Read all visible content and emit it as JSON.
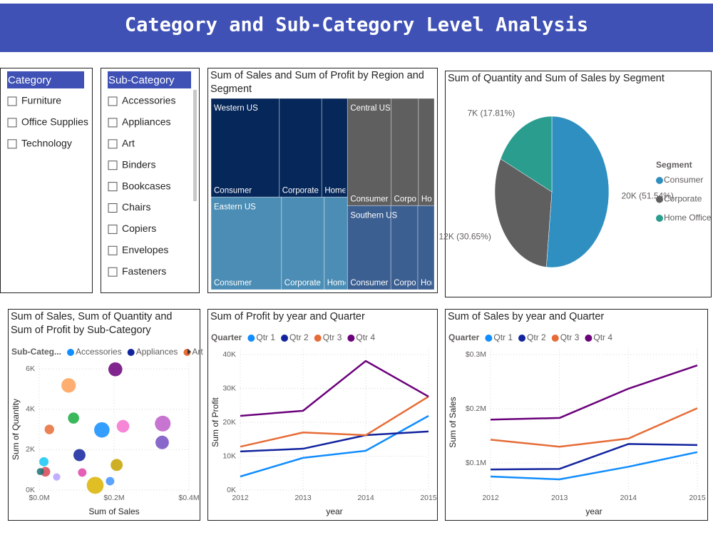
{
  "header": {
    "title": "Category and Sub-Category Level Analysis"
  },
  "slicers": [
    {
      "title": "Category",
      "items": [
        "Furniture",
        "Office Supplies",
        "Technology"
      ]
    },
    {
      "title": "Sub-Category",
      "items": [
        "Accessories",
        "Appliances",
        "Art",
        "Binders",
        "Bookcases",
        "Chairs",
        "Copiers",
        "Envelopes",
        "Fasteners"
      ]
    }
  ],
  "chart_data": [
    {
      "type": "treemap",
      "title": "Sum of Sales and Sum of Profit by Region and Segment",
      "segments": [
        "Consumer",
        "Corporate",
        "Home Office"
      ],
      "series": [
        {
          "name": "Western US",
          "color": "#06275a",
          "values": [
            362900,
            225900,
            136700
          ]
        },
        {
          "name": "Eastern US",
          "color": "#4b8db5",
          "values": [
            350900,
            213000,
            116000
          ]
        },
        {
          "name": "Central US",
          "color": "#5f5f5f",
          "values": [
            252000,
            158000,
            91000
          ]
        },
        {
          "name": "Southern US",
          "color": "#3c5f91",
          "values": [
            196000,
            122000,
            74000
          ]
        }
      ]
    },
    {
      "type": "pie",
      "title": "Sum of Quantity and Sum of Sales by Segment",
      "legend_title": "Segment",
      "categories": [
        "Consumer",
        "Corporate",
        "Home Office"
      ],
      "colors": [
        "#2f8fc1",
        "#5f5f5f",
        "#2a9d8f"
      ],
      "values": [
        19521,
        11608,
        6744
      ],
      "value_labels": [
        "20K (51.54%)",
        "12K (30.65%)",
        "7K (17.81%)"
      ]
    },
    {
      "type": "scatter",
      "title": "Sum of Sales, Sum of Quantity and Sum of Profit by Sub-Category",
      "x_label": "Sum of Sales",
      "y_label": "Sum of Quantity",
      "legend_title": "Sub-Categ...",
      "legend": [
        "Accessories",
        "Appliances",
        "Art"
      ],
      "x": [
        167380,
        107532,
        27119,
        203413,
        114880,
        328449,
        149528,
        16476,
        3024,
        91705,
        12486,
        189239,
        78479,
        330007,
        223844,
        46674,
        206966
      ],
      "y": [
        2976,
        1729,
        3000,
        5974,
        868,
        2356,
        234,
        906,
        914,
        3563,
        1400,
        440,
        5178,
        3289,
        3158,
        647,
        1241
      ],
      "sizes": [
        41937,
        18138,
        6528,
        30222,
        -3473,
        26590,
        55618,
        6964,
        950,
        13059,
        5546,
        3385,
        34054,
        44516,
        21279,
        -1189,
        -17725
      ],
      "colors": [
        "#118dff",
        "#12239e",
        "#e66c37",
        "#6b007b",
        "#e044a7",
        "#744ec2",
        "#d9b300",
        "#d64550",
        "#197278",
        "#1aab40",
        "#15c6f4",
        "#4092ff",
        "#ffa058",
        "#be5dc9",
        "#f472d0",
        "#b5a1ff",
        "#c4a200"
      ],
      "xlim": [
        0,
        400000
      ],
      "xticks": [
        {
          "value": 0,
          "label": "$0.0M"
        },
        {
          "value": 200000,
          "label": "$0.2M"
        },
        {
          "value": 400000,
          "label": "$0.4M"
        }
      ],
      "ylim": [
        0,
        6000
      ],
      "yticks": [
        {
          "value": 0,
          "label": "0K"
        },
        {
          "value": 2000,
          "label": "2K"
        },
        {
          "value": 4000,
          "label": "4K"
        },
        {
          "value": 6000,
          "label": "6K"
        }
      ],
      "grid": true
    },
    {
      "type": "line",
      "title": "Sum of Profit by year and Quarter",
      "x_label": "year",
      "y_label": "Sum of Profit",
      "legend_title": "Quarter",
      "x": [
        2012,
        2013,
        2014,
        2015
      ],
      "xlim": [
        2012,
        2015
      ],
      "xticks": [
        2012,
        2013,
        2014,
        2015
      ],
      "ylim": [
        0,
        40000
      ],
      "yticks": [
        {
          "value": 0,
          "label": "0K"
        },
        {
          "value": 10000,
          "label": "10K"
        },
        {
          "value": 20000,
          "label": "20K"
        },
        {
          "value": 30000,
          "label": "30K"
        },
        {
          "value": 40000,
          "label": "40K"
        }
      ],
      "grid": true,
      "series": [
        {
          "name": "Qtr 1",
          "color": "#118dff",
          "values": [
            4000,
            9500,
            11600,
            21900
          ]
        },
        {
          "name": "Qtr 2",
          "color": "#12239e",
          "values": [
            11400,
            12200,
            16200,
            17300
          ]
        },
        {
          "name": "Qtr 3",
          "color": "#e66c37",
          "values": [
            12800,
            17000,
            16200,
            27600
          ]
        },
        {
          "name": "Qtr 4",
          "color": "#6b007b",
          "values": [
            21900,
            23400,
            38100,
            27600
          ]
        }
      ]
    },
    {
      "type": "line",
      "title": "Sum of Sales by year and Quarter",
      "x_label": "year",
      "y_label": "Sum of Sales",
      "legend_title": "Quarter",
      "x": [
        2012,
        2013,
        2014,
        2015
      ],
      "xlim": [
        2012,
        2015
      ],
      "xticks": [
        2012,
        2013,
        2014,
        2015
      ],
      "ylim": [
        50000,
        300000
      ],
      "yticks": [
        {
          "value": 100000,
          "label": "$0.1M"
        },
        {
          "value": 200000,
          "label": "$0.2M"
        },
        {
          "value": 300000,
          "label": "$0.3M"
        }
      ],
      "grid": true,
      "series": [
        {
          "name": "Qtr 1",
          "color": "#118dff",
          "values": [
            75000,
            69700,
            93000,
            120000
          ]
        },
        {
          "name": "Qtr 2",
          "color": "#12239e",
          "values": [
            88000,
            89000,
            135000,
            133000
          ]
        },
        {
          "name": "Qtr 3",
          "color": "#e66c37",
          "values": [
            143000,
            130000,
            145000,
            201000
          ]
        },
        {
          "name": "Qtr 4",
          "color": "#6b007b",
          "values": [
            180000,
            183000,
            237000,
            280000
          ]
        }
      ]
    }
  ]
}
